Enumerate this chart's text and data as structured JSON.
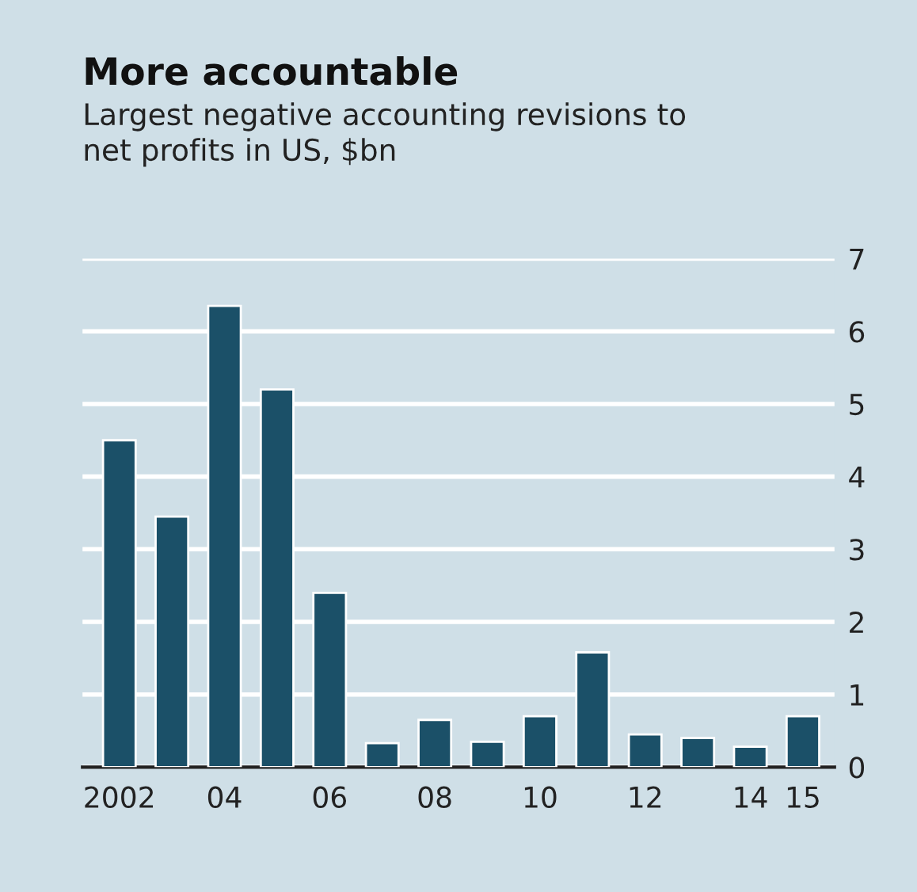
{
  "chart_data": {
    "type": "bar",
    "title": "More accountable",
    "subtitle": "Largest negative accounting revisions to\nnet profits in US, $bn",
    "categories": [
      "2002",
      null,
      "04",
      null,
      "06",
      null,
      "08",
      null,
      "10",
      null,
      "12",
      null,
      "14",
      "15"
    ],
    "values": [
      4.5,
      3.45,
      6.35,
      5.2,
      2.4,
      0.33,
      0.65,
      0.35,
      0.7,
      1.58,
      0.45,
      0.4,
      0.28,
      0.7
    ],
    "color": "#1b5068",
    "ylim": [
      0,
      7
    ],
    "yticks": [
      0,
      1,
      2,
      3,
      4,
      5,
      6,
      7
    ],
    "grid": "y"
  }
}
